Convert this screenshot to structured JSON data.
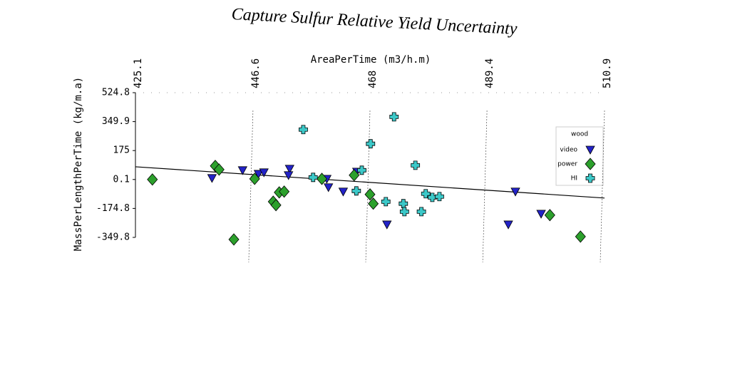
{
  "chart_data": {
    "type": "scatter",
    "title": "Capture Sulfur Relative Yield Uncertainty",
    "x_label": "AreaPerTime (m3/h.m)",
    "y_label": "MassPerLengthPerTime (kg/m.a)",
    "legend_title": "wood",
    "legend_position": "right",
    "grid": true,
    "xlim": [
      425.1,
      510.9
    ],
    "xticks": [
      425.1,
      446.6,
      468.0,
      489.4,
      510.9
    ],
    "ylim": [
      -349.8,
      524.8
    ],
    "yticks": [
      524.8,
      349.9,
      175.0,
      0.1,
      -174.8,
      -349.8
    ],
    "trend_line": {
      "x": [
        425.1,
        510.9
      ],
      "y": [
        77,
        -112
      ],
      "color": "#000000"
    },
    "series": [
      {
        "name": "video",
        "marker": "triangle",
        "color": "#2323c8",
        "x": [
          439.1,
          444.7,
          447.6,
          448.6,
          453.3,
          453.1,
          460.1,
          460.4,
          463.1,
          465.6,
          471.1,
          493.3,
          494.6,
          499.3
        ],
        "y": [
          8.7,
          56,
          34,
          43,
          65,
          26,
          4,
          -47,
          -73,
          47,
          -272,
          -272,
          -73,
          -207
        ]
      },
      {
        "name": "power",
        "marker": "diamond",
        "color": "#2ca02c",
        "x": [
          428.2,
          439.7,
          440.4,
          443.1,
          446.9,
          450.3,
          450.8,
          451.4,
          452.3,
          459.2,
          465.1,
          468.0,
          468.6,
          500.9,
          506.5
        ],
        "y": [
          0.1,
          82,
          60,
          -362,
          4,
          -134,
          -155,
          -78,
          -73,
          4,
          26,
          -90,
          -146,
          -215,
          -345
        ]
      },
      {
        "name": "HI",
        "marker": "plus",
        "color": "#3cc8c8",
        "x": [
          455.8,
          457.6,
          468.1,
          472.4,
          466.5,
          465.5,
          470.9,
          474.1,
          474.3,
          476.3,
          477.4,
          478.2,
          479.4,
          480.7
        ],
        "y": [
          302,
          13,
          216,
          379,
          56,
          -69,
          -134,
          -146,
          -194,
          86,
          -194,
          -86,
          -108,
          -103
        ]
      }
    ]
  }
}
